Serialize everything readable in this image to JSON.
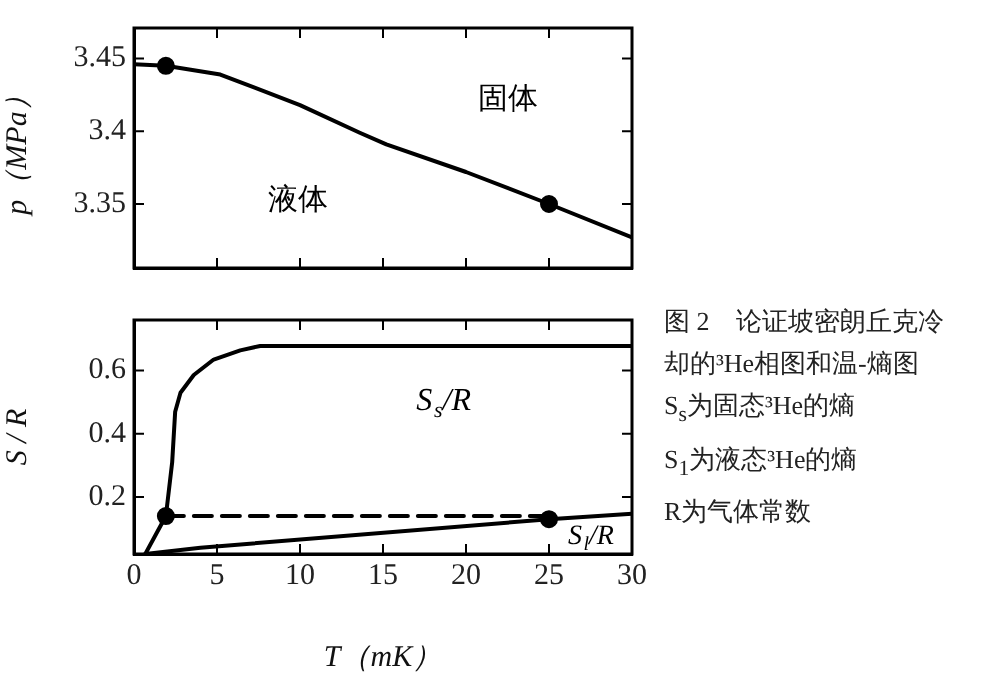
{
  "chart_data": [
    {
      "type": "line",
      "ylabel": "p（MPa）",
      "xlim": [
        0,
        30
      ],
      "xticks": [
        0,
        5,
        10,
        15,
        20,
        25,
        30
      ],
      "ylim": [
        3.306,
        3.471
      ],
      "yticks": [
        3.35,
        3.4,
        3.45
      ],
      "tick_labels": "y",
      "grid": false,
      "annotations": [
        "固体",
        "液体"
      ],
      "series": [
        {
          "type": "line",
          "color": "#000000",
          "x": [
            0,
            1.92,
            5.2,
            10,
            13.6,
            15.2,
            20,
            25,
            30
          ],
          "values": [
            3.446,
            3.445,
            3.439,
            3.418,
            3.399,
            3.391,
            3.372,
            3.35,
            3.327
          ]
        },
        {
          "type": "scatter",
          "marker": "circle",
          "color": "#000000",
          "x": [
            1.92,
            25
          ],
          "values": [
            3.445,
            3.35
          ]
        }
      ]
    },
    {
      "type": "line",
      "xlabel": "T（mK）",
      "ylabel": "S / R",
      "xlim": [
        0,
        30
      ],
      "xticks": [
        0,
        5,
        10,
        15,
        20,
        25,
        30
      ],
      "ylim": [
        0.02,
        0.76
      ],
      "yticks": [
        0.2,
        0.4,
        0.6
      ],
      "grid": false,
      "annotations": [
        "图 2　论证坡密朗丘克冷却的³He相图和温-熵图",
        "S$_{s}$为固态³He的熵",
        "S$_{1}$为液态³He的熵",
        "R为气体常数"
      ],
      "series": [
        {
          "type": "line",
          "name": "S$_{s}$/R",
          "color": "#000000",
          "x": [
            0.68,
            1.92,
            2.3,
            2.48,
            2.8,
            3.6,
            4.8,
            6.4,
            7.6,
            30
          ],
          "values": [
            0.02,
            0.14,
            0.31,
            0.47,
            0.53,
            0.586,
            0.635,
            0.664,
            0.678,
            0.678
          ]
        },
        {
          "type": "line",
          "name": "S$_{l}$/R",
          "color": "#000000",
          "x": [
            0.68,
            4,
            25,
            30
          ],
          "values": [
            0.02,
            0.04,
            0.13,
            0.147
          ]
        },
        {
          "type": "line",
          "line_style": "dashed",
          "color": "#000000",
          "x": [
            1.92,
            25
          ],
          "values": [
            0.14,
            0.14
          ]
        },
        {
          "type": "scatter",
          "marker": "circle",
          "color": "#000000",
          "x": [
            1.92,
            25
          ],
          "values": [
            0.14,
            0.13
          ]
        }
      ]
    }
  ]
}
